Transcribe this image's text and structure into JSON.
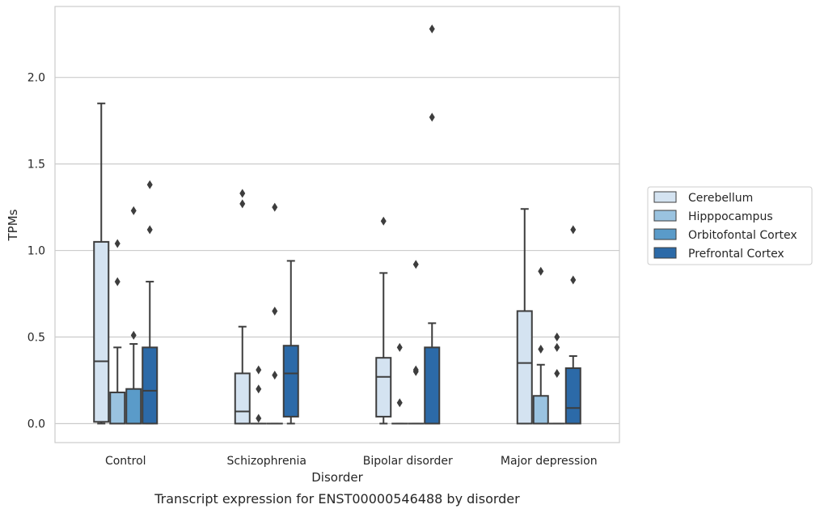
{
  "chart_data": {
    "type": "box",
    "title": "",
    "caption": "Transcript expression for ENST00000546488 by disorder",
    "xlabel": "Disorder",
    "ylabel": "TPMs",
    "ylim": [
      -0.11,
      2.41
    ],
    "yticks": [
      "0.0",
      "0.5",
      "1.0",
      "1.5",
      "2.0"
    ],
    "ytick_values": [
      0,
      0.5,
      1.0,
      1.5,
      2.0
    ],
    "grid": "horizontal",
    "legend_position": "right",
    "categories": [
      "Control",
      "Schizophrenia",
      "Bipolar disorder",
      "Major depression"
    ],
    "series": [
      {
        "name": "Cerebellum",
        "color": "#d4e3f1",
        "boxes": [
          {
            "whisker_low": 0.0,
            "q1": 0.01,
            "median": 0.36,
            "q3": 1.05,
            "whisker_high": 1.85,
            "outliers": []
          },
          {
            "whisker_low": 0.0,
            "q1": 0.0,
            "median": 0.07,
            "q3": 0.29,
            "whisker_high": 0.56,
            "outliers": [
              1.27,
              1.33
            ]
          },
          {
            "whisker_low": 0.0,
            "q1": 0.04,
            "median": 0.27,
            "q3": 0.38,
            "whisker_high": 0.87,
            "outliers": [
              1.17
            ]
          },
          {
            "whisker_low": 0.0,
            "q1": 0.0,
            "median": 0.35,
            "q3": 0.65,
            "whisker_high": 1.24,
            "outliers": []
          }
        ]
      },
      {
        "name": "Hipppocampus",
        "color": "#9ac3e0",
        "boxes": [
          {
            "whisker_low": 0.0,
            "q1": 0.0,
            "median": 0.0,
            "q3": 0.18,
            "whisker_high": 0.44,
            "outliers": [
              0.82,
              1.04
            ]
          },
          {
            "whisker_low": 0.0,
            "q1": 0.0,
            "median": 0.0,
            "q3": 0.0,
            "whisker_high": 0.0,
            "outliers": [
              0.03,
              0.2,
              0.31
            ]
          },
          {
            "whisker_low": 0.0,
            "q1": 0.0,
            "median": 0.0,
            "q3": 0.0,
            "whisker_high": 0.0,
            "outliers": [
              0.12,
              0.44
            ]
          },
          {
            "whisker_low": 0.0,
            "q1": 0.0,
            "median": 0.0,
            "q3": 0.16,
            "whisker_high": 0.34,
            "outliers": [
              0.43,
              0.88
            ]
          }
        ]
      },
      {
        "name": "Orbitofontal Cortex",
        "color": "#5a9bc9",
        "boxes": [
          {
            "whisker_low": 0.0,
            "q1": 0.0,
            "median": 0.0,
            "q3": 0.2,
            "whisker_high": 0.46,
            "outliers": [
              0.51,
              1.23
            ]
          },
          {
            "whisker_low": 0.0,
            "q1": 0.0,
            "median": 0.0,
            "q3": 0.0,
            "whisker_high": 0.0,
            "outliers": [
              0.28,
              0.65,
              1.25
            ]
          },
          {
            "whisker_low": 0.0,
            "q1": 0.0,
            "median": 0.0,
            "q3": 0.0,
            "whisker_high": 0.0,
            "outliers": [
              0.3,
              0.31,
              0.92
            ]
          },
          {
            "whisker_low": 0.0,
            "q1": 0.0,
            "median": 0.0,
            "q3": 0.0,
            "whisker_high": 0.0,
            "outliers": [
              0.29,
              0.44,
              0.5
            ]
          }
        ]
      },
      {
        "name": "Prefrontal Cortex",
        "color": "#2c6aa8",
        "boxes": [
          {
            "whisker_low": 0.0,
            "q1": 0.0,
            "median": 0.19,
            "q3": 0.44,
            "whisker_high": 0.82,
            "outliers": [
              1.12,
              1.38
            ]
          },
          {
            "whisker_low": 0.0,
            "q1": 0.04,
            "median": 0.29,
            "q3": 0.45,
            "whisker_high": 0.94,
            "outliers": []
          },
          {
            "whisker_low": 0.0,
            "q1": 0.0,
            "median": 0.0,
            "q3": 0.44,
            "whisker_high": 0.58,
            "outliers": [
              1.77,
              2.28
            ]
          },
          {
            "whisker_low": 0.0,
            "q1": 0.0,
            "median": 0.09,
            "q3": 0.32,
            "whisker_high": 0.39,
            "outliers": [
              0.83,
              1.12
            ]
          }
        ]
      }
    ]
  }
}
